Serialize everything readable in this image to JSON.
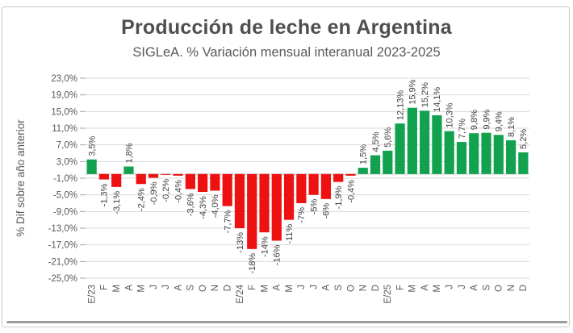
{
  "frame": {
    "background": "#ffffff",
    "border_color": "#c9c9c9",
    "bottom_rule_color": "#9c9c9c"
  },
  "chart_data": {
    "type": "bar",
    "title": "Producción de leche en Argentina",
    "subtitle": "SIGLeA. % Variación mensual interanual 2023-2025",
    "ylabel": "% Dif sobre año anterior",
    "xlabel": "",
    "ylim": [
      -25,
      23
    ],
    "ytick_step": 4,
    "ytick_labels": [
      "23,0%",
      "19,0%",
      "15,0%",
      "11,0%",
      "7,0%",
      "3,0%",
      "-1,0%",
      "-5,0%",
      "-9,0%",
      "-13,0%",
      "-17,0%",
      "-21,0%",
      "-25,0%"
    ],
    "grid": true,
    "legend": false,
    "positive_color": "#12a24f",
    "negative_color": "#ee1111",
    "gridline_color": "#d9d9d9",
    "zero_line_color": "#bfbfbf",
    "tick_color": "#a6a6a6",
    "axis_text_color": "#595959",
    "label_color": "#404040",
    "categories": [
      "E/23",
      "F",
      "M",
      "A",
      "M",
      "J",
      "J",
      "A",
      "S",
      "O",
      "N",
      "D",
      "E/24",
      "F",
      "M",
      "A",
      "M",
      "J",
      "J",
      "A",
      "S",
      "O",
      "N",
      "D",
      "E/25",
      "F",
      "M",
      "A",
      "M",
      "J",
      "J",
      "A",
      "S",
      "O",
      "N",
      "D"
    ],
    "values": [
      3.5,
      -1.3,
      -3.1,
      1.8,
      -2.4,
      -0.9,
      -0.2,
      -0.4,
      -3.6,
      -4.3,
      -4.0,
      -7.7,
      -13,
      -18,
      -14,
      -16,
      -11,
      -7,
      -5,
      -6,
      -1.9,
      -0.4,
      1.5,
      4.5,
      5.6,
      12.13,
      15.9,
      15.2,
      14.1,
      10.3,
      7.7,
      9.8,
      9.9,
      9.4,
      8.1,
      5.2
    ],
    "value_labels": [
      "3,5%",
      "-1,3%",
      "-3,1%",
      "1,8%",
      "-2,4%",
      "-0,9%",
      "-0,2%",
      "-0,4%",
      "-3,6%",
      "-4,3%",
      "-4,0%",
      "-7,7%",
      "-13%",
      "-18%",
      "-14%",
      "-16%",
      "-11%",
      "-7%",
      "-5%",
      "-6%",
      "-1,9%",
      "-0,4%",
      "1,5%",
      "4,5%",
      "5,6%",
      "12,13%",
      "15,9%",
      "15,2%",
      "14,1%",
      "10,3%",
      "7,7%",
      "9,8%",
      "9,9%",
      "9,4%",
      "8,1%",
      "5,2%"
    ]
  }
}
